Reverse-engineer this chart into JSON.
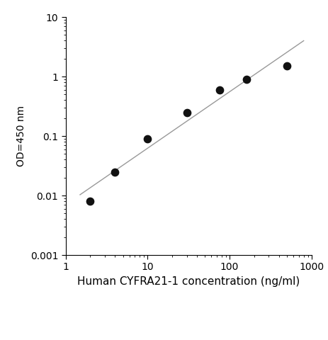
{
  "x_data": [
    2,
    4,
    10,
    30,
    75,
    160,
    500
  ],
  "y_data": [
    0.008,
    0.025,
    0.09,
    0.25,
    0.6,
    0.9,
    1.5
  ],
  "xlim": [
    1,
    1000
  ],
  "ylim": [
    0.001,
    10
  ],
  "xlabel": "Human CYFRA21-1 concentration (ng/ml)",
  "ylabel": "OD=450 nm",
  "line_color": "#999999",
  "dot_color": "#111111",
  "dot_size": 55,
  "line_width": 1.0,
  "xlabel_fontsize": 11,
  "ylabel_fontsize": 10,
  "tick_fontsize": 10,
  "x_ticks": [
    1,
    10,
    100,
    1000
  ],
  "x_tick_labels": [
    "1",
    "10",
    "100",
    "1000"
  ],
  "y_ticks": [
    0.001,
    0.01,
    0.1,
    1,
    10
  ],
  "y_tick_labels": [
    "0.001",
    "0.01",
    "0.1",
    "1",
    "10"
  ]
}
